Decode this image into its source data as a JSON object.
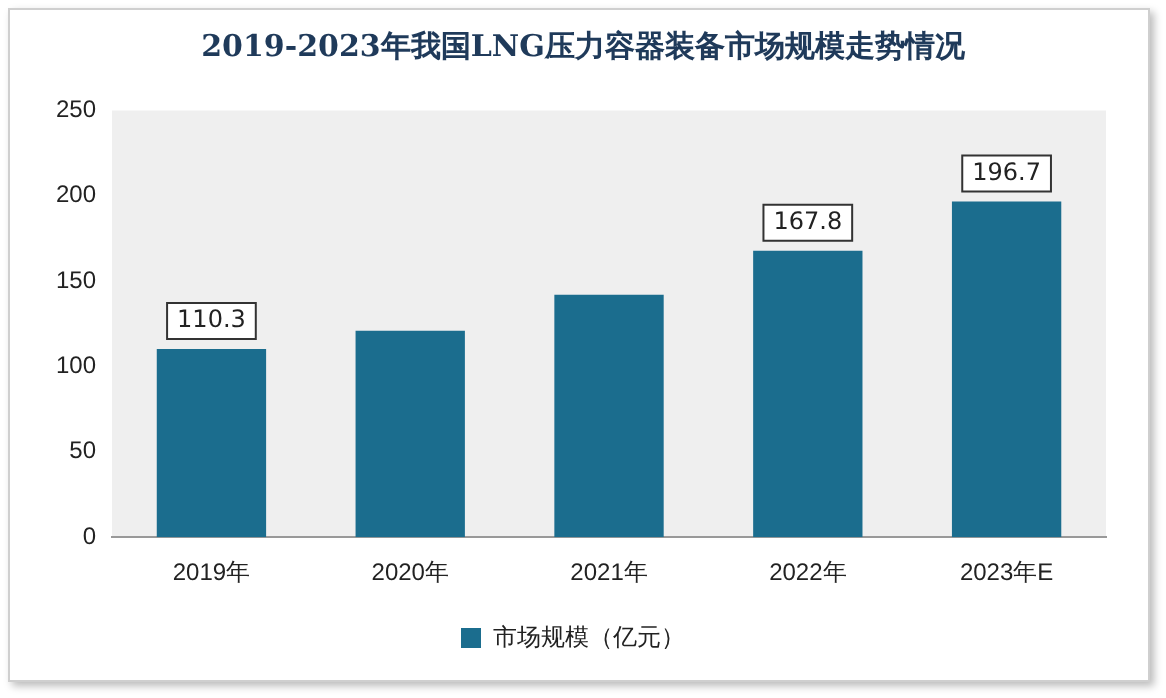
{
  "chart_data": {
    "type": "bar",
    "title": "2019-2023年我国LNG压力容器装备市场规模走势情况",
    "categories": [
      "2019年",
      "2020年",
      "2021年",
      "2022年",
      "2023年E"
    ],
    "series": [
      {
        "name": "市场规模（亿元）",
        "color": "#1b6d8e",
        "values": [
          110.3,
          121,
          142,
          167.8,
          196.7
        ],
        "value_labels": [
          "110.3",
          null,
          null,
          "167.8",
          "196.7"
        ]
      }
    ],
    "ylim": [
      0,
      250
    ],
    "yticks": [
      0,
      50,
      100,
      150,
      200,
      250
    ],
    "grid": false,
    "legend": "bottom"
  }
}
